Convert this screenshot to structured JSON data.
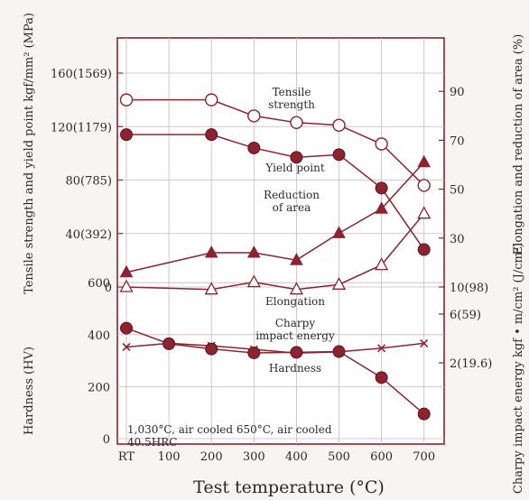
{
  "chart_data": {
    "type": "line",
    "x": [
      "RT",
      "100",
      "200",
      "300",
      "400",
      "500",
      "600",
      "700"
    ],
    "xlabel": "Test temperature (°C)",
    "y_left_label": "Tensile strength and yield point kgf/mm² (MPa)",
    "y_left_ticks": [
      "160(1569)",
      "120(1179)",
      "80(785)",
      "40(392)",
      "0"
    ],
    "y_right_label": "Elongation and reduction of area (%)",
    "y_right_ticks": [
      "90",
      "70",
      "50",
      "30",
      "10(98)"
    ],
    "charpy_label": "Charpy impact energy kgf • m/cm² (J/cm²)",
    "charpy_ticks": [
      "6(59)",
      "2(19.6)"
    ],
    "hardness_label": "Hardness (HV)",
    "hardness_ticks": [
      "600",
      "400",
      "200",
      "0"
    ],
    "series": [
      {
        "name": "Tensile strength",
        "unit": "kgf/mm²",
        "marker": "open-circle",
        "points": [
          [
            "RT",
            140
          ],
          [
            "200",
            140
          ],
          [
            "300",
            128
          ],
          [
            "400",
            123
          ],
          [
            "500",
            121
          ],
          [
            "600",
            107
          ],
          [
            "700",
            76
          ]
        ]
      },
      {
        "name": "Yield point",
        "unit": "kgf/mm²",
        "marker": "filled-circle",
        "points": [
          [
            "RT",
            114
          ],
          [
            "200",
            114
          ],
          [
            "300",
            104
          ],
          [
            "400",
            97
          ],
          [
            "500",
            99
          ],
          [
            "600",
            74
          ],
          [
            "700",
            28
          ]
        ]
      },
      {
        "name": "Reduction of area",
        "unit": "%",
        "marker": "filled-triangle",
        "points": [
          [
            "RT",
            16
          ],
          [
            "200",
            24
          ],
          [
            "300",
            24
          ],
          [
            "400",
            21
          ],
          [
            "500",
            32
          ],
          [
            "600",
            42
          ],
          [
            "700",
            61
          ]
        ]
      },
      {
        "name": "Elongation",
        "unit": "%",
        "marker": "open-triangle",
        "points": [
          [
            "RT",
            10
          ],
          [
            "200",
            9
          ],
          [
            "300",
            12
          ],
          [
            "400",
            9
          ],
          [
            "500",
            11
          ],
          [
            "600",
            19
          ],
          [
            "700",
            40
          ]
        ]
      },
      {
        "name": "Charpy impact energy",
        "unit": "kgf•m/cm²",
        "marker": "x",
        "points": [
          [
            "RT",
            3.3
          ],
          [
            "100",
            3.6
          ],
          [
            "200",
            3.4
          ],
          [
            "300",
            3.1
          ],
          [
            "400",
            2.8
          ],
          [
            "500",
            2.9
          ],
          [
            "600",
            3.2
          ],
          [
            "700",
            3.6
          ]
        ]
      },
      {
        "name": "Hardness",
        "unit": "HV",
        "marker": "filled-circle",
        "points": [
          [
            "RT",
            425
          ],
          [
            "100",
            365
          ],
          [
            "200",
            345
          ],
          [
            "300",
            330
          ],
          [
            "400",
            332
          ],
          [
            "500",
            335
          ],
          [
            "600",
            235
          ],
          [
            "700",
            95
          ]
        ]
      }
    ],
    "labels": {
      "tensile": "Tensile",
      "tensile2": "strength",
      "yield": "Yield point",
      "reduction": "Reduction",
      "reduction2": "of area",
      "elongation": "Elongation",
      "charpy": "Charpy",
      "charpy2": "impact energy",
      "hardness": "Hardness"
    },
    "condition_line1": "1,030°C, air cooled 650°C, air cooled",
    "condition_line2": "40.5HRC",
    "colors": {
      "frame": "#8b2330",
      "series": "#8b2330",
      "fill": "#8b2330",
      "open_fill": "#ffffff"
    }
  }
}
